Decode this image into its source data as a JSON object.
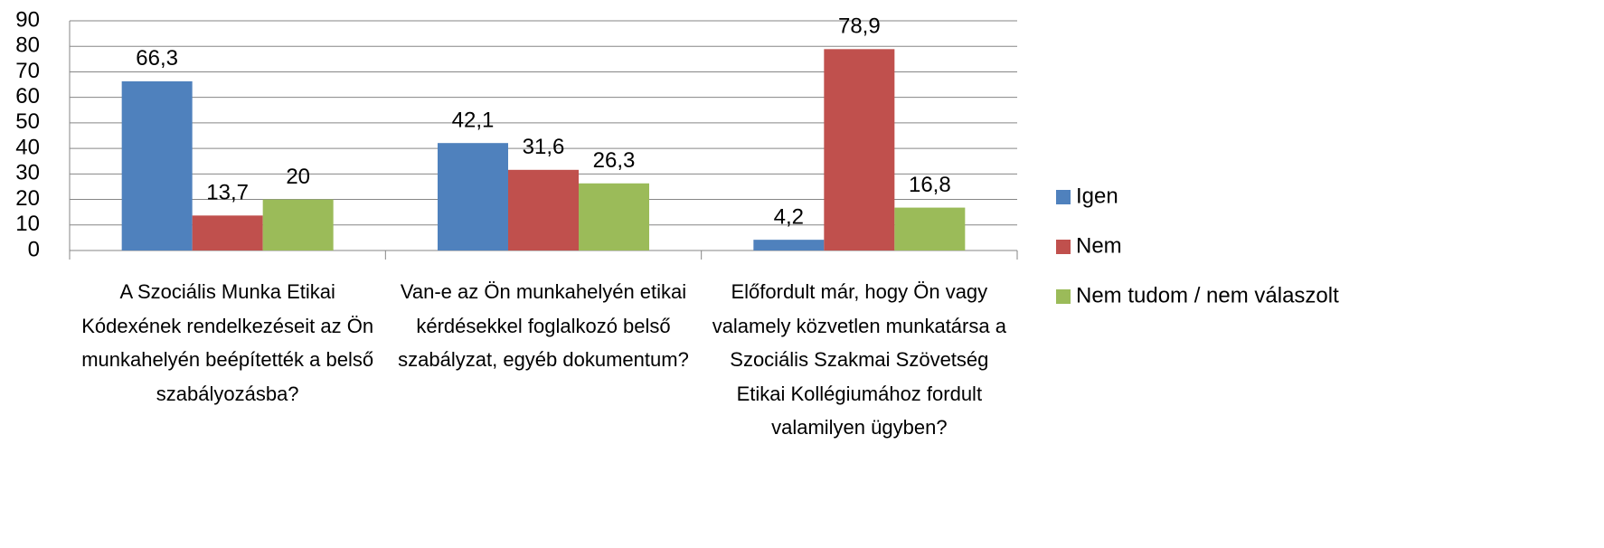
{
  "chart_data": {
    "type": "bar",
    "categories": [
      "A Szociális Munka Etikai Kódexének rendelkezéseit az Ön munkahelyén beépítették a belső szabályozásba?",
      "Van-e az Ön munkahelyén etikai kérdésekkel foglalkozó belső szabályzat, egyéb dokumentum?",
      "Előfordult már, hogy Ön vagy valamely közvetlen munkatársa a Szociális Szakmai Szövetség Etikai Kollégiumához fordult valamilyen ügyben?"
    ],
    "series": [
      {
        "name": "Igen",
        "color": "#4f81bd",
        "values": [
          66.3,
          42.1,
          4.2
        ],
        "value_labels": [
          "66,3",
          "42,1",
          "4,2"
        ]
      },
      {
        "name": "Nem",
        "color": "#c0504d",
        "values": [
          13.7,
          31.6,
          78.9
        ],
        "value_labels": [
          "13,7",
          "31,6",
          "78,9"
        ]
      },
      {
        "name": "Nem tudom / nem válaszolt",
        "color": "#9bbb59",
        "values": [
          20,
          26.3,
          16.8
        ],
        "value_labels": [
          "20",
          "26,3",
          "16,8"
        ]
      }
    ],
    "ylim": [
      0,
      90
    ],
    "yticks": [
      0,
      10,
      20,
      30,
      40,
      50,
      60,
      70,
      80,
      90
    ],
    "grid": true,
    "legend": "right"
  }
}
